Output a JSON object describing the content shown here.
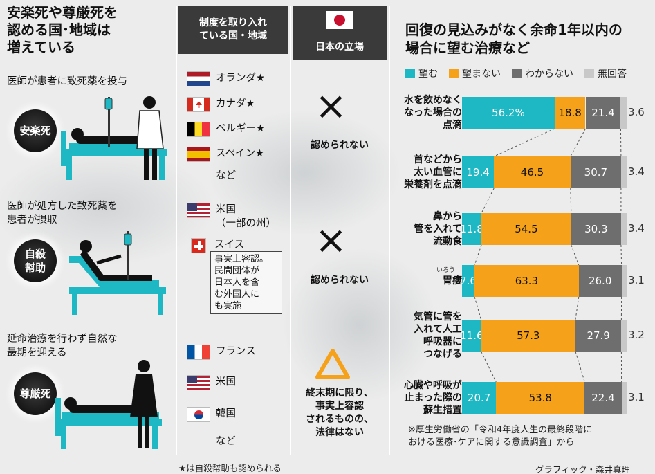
{
  "main_title": "安楽死や尊厳死を\n認める国･地域は\n増えている",
  "columns": {
    "countries_header": "制度を取り入れ\nている国・地域",
    "japan_header": "日本の立場"
  },
  "sections": [
    {
      "label": "医師が患者に致死薬を投与",
      "badge": "安楽死",
      "countries": [
        "オランダ★",
        "カナダ★",
        "ベルギー★",
        "スペイン★"
      ],
      "etc": "など",
      "japan_mark": "×",
      "japan_status": "認められない"
    },
    {
      "label": "医師が処方した致死薬を\n患者が摂取",
      "badge": "自殺\n幇助",
      "countries": [
        "米国\n（一部の州）",
        "スイス"
      ],
      "note": "事実上容認。\n民間団体が\n日本人を含\nむ外国人に\nも実施",
      "japan_mark": "×",
      "japan_status": "認められない"
    },
    {
      "label": "延命治療を行わず自然な\n最期を迎える",
      "badge": "尊厳死",
      "countries": [
        "フランス",
        "米国",
        "韓国"
      ],
      "etc": "など",
      "japan_mark": "△",
      "japan_status": "終末期に限り、\n事実上容認\nされるものの、\n法律はない"
    }
  ],
  "footnote": "★は自殺幇助も認められる",
  "credit": "グラフィック・森井真理",
  "source": "※厚生労働省の「令和4年度人生の最終段階に\nおける医療･ケアに関する意識調査」から",
  "ruby": "いろう",
  "colors": {
    "want": "#1eb8c4",
    "not_want": "#f5a21a",
    "dont_know": "#6e6e6e",
    "no_answer": "#c8c8c8",
    "japan_red": "#c8102e"
  },
  "chart_data": {
    "type": "bar",
    "stacked": true,
    "orientation": "horizontal",
    "title": "回復の見込みがなく余命1年以内の\n場合に望む治療など",
    "unit": "%",
    "categories": [
      "水を飲めなく\nなった場合の\n点滴",
      "首などから\n太い血管に\n栄養剤を点滴",
      "鼻から\n管を入れて\n流動食",
      "胃瘻",
      "気管に管を\n入れて人工\n呼吸器に\nつなげる",
      "心臓や呼吸が\n止まった際の\n蘇生措置"
    ],
    "series": [
      {
        "name": "望む",
        "values": [
          56.2,
          19.4,
          11.8,
          7.6,
          11.6,
          20.7
        ],
        "labels": [
          "56.2%",
          "19.4",
          "11.8",
          "7.6",
          "11.6",
          "20.7"
        ]
      },
      {
        "name": "望まない",
        "values": [
          18.8,
          46.5,
          54.5,
          63.3,
          57.3,
          53.8
        ],
        "labels": [
          "18.8",
          "46.5",
          "54.5",
          "63.3",
          "57.3",
          "53.8"
        ]
      },
      {
        "name": "わからない",
        "values": [
          21.4,
          30.7,
          30.3,
          26.0,
          27.9,
          22.4
        ],
        "labels": [
          "21.4",
          "30.7",
          "30.3",
          "26.0",
          "27.9",
          "22.4"
        ]
      },
      {
        "name": "無回答",
        "values": [
          3.6,
          3.4,
          3.4,
          3.1,
          3.2,
          3.1
        ],
        "labels": [
          "3.6",
          "3.4",
          "3.4",
          "3.1",
          "3.2",
          "3.1"
        ]
      }
    ],
    "xlim": [
      0,
      100
    ],
    "legend_position": "top"
  }
}
